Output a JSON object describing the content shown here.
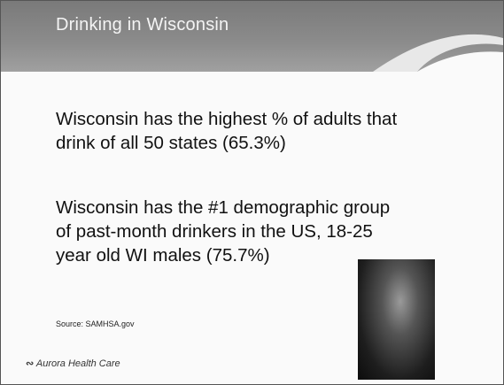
{
  "header": {
    "title": "Drinking in Wisconsin"
  },
  "bullets": [
    {
      "lines": [
        "Wisconsin has the highest % of adults that",
        "drink of all 50 states (65.3%)"
      ]
    },
    {
      "lines": [
        "Wisconsin has the #1 demographic group",
        "of past-month drinkers in the US, 18-25",
        "year old WI males (75.7%)"
      ]
    }
  ],
  "source": "Source: SAMHSA.gov",
  "footer": {
    "logo": "Aurora Health Care"
  }
}
